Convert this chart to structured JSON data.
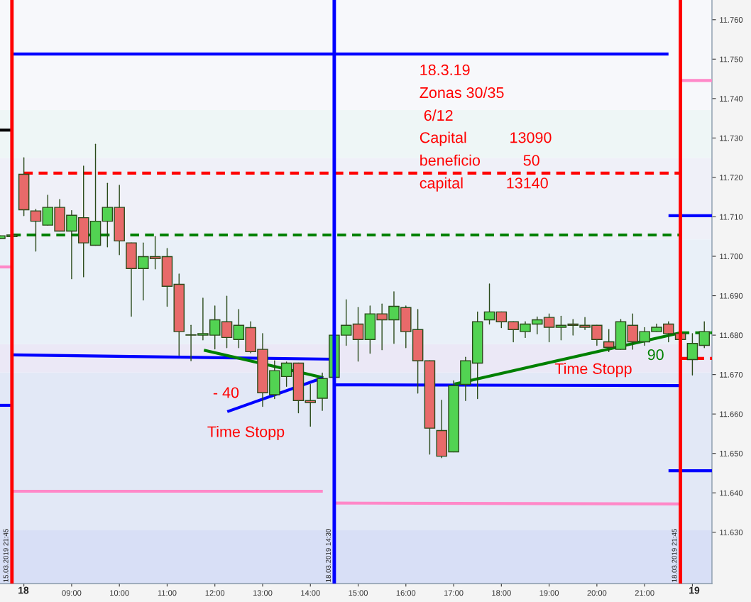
{
  "chart_data": {
    "type": "candlestick",
    "x": [
      7.5,
      7.75,
      8,
      8.25,
      8.5,
      8.75,
      9,
      9.25,
      9.5,
      9.75,
      10,
      10.25,
      10.5,
      10.75,
      11,
      11.25,
      11.5,
      11.75,
      12,
      12.25,
      12.5,
      12.75,
      13,
      13.25,
      13.5,
      13.75,
      14,
      14.25,
      14.5,
      14.75,
      15,
      15.25,
      15.5,
      15.75,
      16,
      16.25,
      16.5,
      16.75,
      17,
      17.25,
      17.5,
      17.75,
      18,
      18.25,
      18.5,
      18.75,
      19,
      19.25,
      19.5,
      19.75,
      20,
      20.25,
      20.5,
      20.75,
      21,
      21.25,
      21.5,
      21.75,
      22,
      22.25
    ],
    "ohlc": [
      [
        11.7045,
        11.7052,
        11.7045,
        11.7052
      ],
      [
        11.705,
        11.7054,
        11.705,
        11.7054
      ],
      [
        11.7208,
        11.725,
        11.7103,
        11.7118
      ],
      [
        11.7115,
        11.7119,
        11.7013,
        11.7089
      ],
      [
        11.7079,
        11.7155,
        11.7079,
        11.7124
      ],
      [
        11.7124,
        11.7144,
        11.7064,
        11.7064
      ],
      [
        11.7064,
        11.7116,
        11.6943,
        11.7104
      ],
      [
        11.7098,
        11.7229,
        11.6948,
        11.7034
      ],
      [
        11.7028,
        11.7284,
        11.7028,
        11.7089
      ],
      [
        11.7089,
        11.7185,
        11.7024,
        11.7124
      ],
      [
        11.7124,
        11.718,
        11.7004,
        11.7039
      ],
      [
        11.7034,
        11.7034,
        11.6848,
        11.6969
      ],
      [
        11.6969,
        11.7034,
        11.6889,
        11.6999
      ],
      [
        11.6999,
        11.705,
        11.6968,
        11.6994
      ],
      [
        11.6999,
        11.702,
        11.6873,
        11.6924
      ],
      [
        11.6929,
        11.6955,
        11.6749,
        11.6809
      ],
      [
        11.68,
        11.6825,
        11.6735,
        11.68
      ],
      [
        11.68,
        11.6894,
        11.6788,
        11.6804
      ],
      [
        11.68,
        11.6874,
        11.6765,
        11.6839
      ],
      [
        11.6834,
        11.6899,
        11.6768,
        11.6794
      ],
      [
        11.6789,
        11.6865,
        11.6768,
        11.6825
      ],
      [
        11.6819,
        11.6834,
        11.6755,
        11.6758
      ],
      [
        11.6764,
        11.6804,
        11.6619,
        11.6654
      ],
      [
        11.6649,
        11.6735,
        11.6639,
        11.671
      ],
      [
        11.6695,
        11.6732,
        11.667,
        11.6729
      ],
      [
        11.6729,
        11.6729,
        11.6603,
        11.6634
      ],
      [
        11.6634,
        11.6675,
        11.6569,
        11.6629
      ],
      [
        11.664,
        11.6704,
        11.6609,
        11.669
      ],
      [
        11.6693,
        11.68,
        11.6693,
        11.68
      ],
      [
        11.68,
        11.689,
        11.6774,
        11.6825
      ],
      [
        11.6828,
        11.687,
        11.6734,
        11.6789
      ],
      [
        11.6789,
        11.6874,
        11.6754,
        11.6854
      ],
      [
        11.6854,
        11.6879,
        11.6763,
        11.6839
      ],
      [
        11.6839,
        11.691,
        11.6779,
        11.6873
      ],
      [
        11.687,
        11.6874,
        11.6768,
        11.6809
      ],
      [
        11.6814,
        11.6865,
        11.6653,
        11.6735
      ],
      [
        11.6735,
        11.6735,
        11.6498,
        11.6564
      ],
      [
        11.6558,
        11.6635,
        11.6489,
        11.6493
      ],
      [
        11.6504,
        11.6684,
        11.6504,
        11.6672
      ],
      [
        11.6675,
        11.6744,
        11.6634,
        11.6735
      ],
      [
        11.6729,
        11.6859,
        11.6639,
        11.6834
      ],
      [
        11.6839,
        11.693,
        11.6828,
        11.6859
      ],
      [
        11.6859,
        11.6859,
        11.6819,
        11.6834
      ],
      [
        11.6834,
        11.6834,
        11.6783,
        11.6814
      ],
      [
        11.6809,
        11.6834,
        11.6794,
        11.6828
      ],
      [
        11.6828,
        11.6846,
        11.6803,
        11.6839
      ],
      [
        11.6845,
        11.6854,
        11.6783,
        11.682
      ],
      [
        11.682,
        11.6848,
        11.6788,
        11.6825
      ],
      [
        11.6828,
        11.684,
        11.68,
        11.6825
      ],
      [
        11.6825,
        11.6845,
        11.6814,
        11.682
      ],
      [
        11.6825,
        11.6825,
        11.6774,
        11.6789
      ],
      [
        11.6783,
        11.6814,
        11.6758,
        11.6769
      ],
      [
        11.6764,
        11.684,
        11.6764,
        11.6834
      ],
      [
        11.6825,
        11.6854,
        11.6764,
        11.6783
      ],
      [
        11.6783,
        11.6819,
        11.6774,
        11.6809
      ],
      [
        11.6809,
        11.6828,
        11.6809,
        11.682
      ],
      [
        11.6828,
        11.6834,
        11.6783,
        11.6804
      ],
      [
        11.6804,
        11.6804,
        11.6789,
        11.6789
      ],
      [
        11.6738,
        11.6804,
        11.6699,
        11.6779
      ],
      [
        11.6774,
        11.6834,
        11.6768,
        11.6809
      ]
    ],
    "colors": [
      "#52d352",
      "#52d352",
      "#e86a6a",
      "#e86a6a",
      "#52d352",
      "#e86a6a",
      "#52d352",
      "#e86a6a",
      "#52d352",
      "#52d352",
      "#e86a6a",
      "#e86a6a",
      "#52d352",
      "#e86a6a",
      "#e86a6a",
      "#e86a6a",
      "#e86a6a",
      "#52d352",
      "#52d352",
      "#e86a6a",
      "#52d352",
      "#e86a6a",
      "#e86a6a",
      "#52d352",
      "#52d352",
      "#e86a6a",
      "#e86a6a",
      "#52d352",
      "#52d352",
      "#52d352",
      "#e86a6a",
      "#52d352",
      "#e86a6a",
      "#52d352",
      "#e86a6a",
      "#e86a6a",
      "#e86a6a",
      "#e86a6a",
      "#52d352",
      "#52d352",
      "#52d352",
      "#52d352",
      "#e86a6a",
      "#e86a6a",
      "#52d352",
      "#52d352",
      "#e86a6a",
      "#52d352",
      "#e86a6a",
      "#e86a6a",
      "#e86a6a",
      "#e86a6a",
      "#52d352",
      "#e86a6a",
      "#52d352",
      "#52d352",
      "#e86a6a",
      "#e86a6a",
      "#52d352",
      "#52d352"
    ],
    "series": [
      {
        "type": "line",
        "color": "#0000ff",
        "x": [
          7.75,
          21.5
        ],
        "values": [
          11.7513,
          11.7513
        ]
      },
      {
        "type": "line",
        "color": "#0000ff",
        "x": [
          7.75,
          14.5
        ],
        "values": [
          11.675,
          11.6739
        ]
      },
      {
        "type": "line",
        "color": "#ff88c8",
        "x": [
          7.75,
          14.26
        ],
        "values": [
          11.6404,
          11.6404
        ]
      },
      {
        "type": "line",
        "color": "#0000ff",
        "x": [
          14.5,
          21.75
        ],
        "values": [
          11.6674,
          11.6672
        ]
      },
      {
        "type": "line",
        "color": "#ff88c8",
        "x": [
          14.5,
          21.75
        ],
        "values": [
          11.6374,
          11.6372
        ]
      },
      {
        "type": "line",
        "color": "#ff0000",
        "line_style": "dashed",
        "x": [
          8.0,
          21.75
        ],
        "values": [
          11.7211,
          11.7211
        ]
      },
      {
        "type": "line",
        "color": "#008000",
        "line_style": "dashed",
        "x": [
          7.75,
          21.75
        ],
        "values": [
          11.7054,
          11.7054
        ]
      },
      {
        "type": "line",
        "color": "#008000",
        "x": [
          11.77,
          14.27
        ],
        "values": [
          11.6762,
          11.6692
        ]
      },
      {
        "type": "line",
        "color": "#0000ff",
        "x": [
          12.26,
          14.27
        ],
        "values": [
          11.6606,
          11.6692
        ]
      },
      {
        "type": "line",
        "color": "#008000",
        "x": [
          17.02,
          21.75
        ],
        "values": [
          11.6676,
          11.6806
        ]
      },
      {
        "type": "line",
        "color": "#ff88c8",
        "x": [
          21.75,
          22.41
        ],
        "values": [
          11.7446,
          11.7446
        ]
      },
      {
        "type": "line",
        "color": "#0000ff",
        "x": [
          21.5,
          22.41
        ],
        "values": [
          11.7103,
          11.7103
        ]
      },
      {
        "type": "line",
        "color": "#0000ff",
        "x": [
          21.5,
          22.41
        ],
        "values": [
          11.6456,
          11.6456
        ]
      },
      {
        "type": "line",
        "color": "#ff0000",
        "line_style": "dashed",
        "x": [
          21.75,
          22.41
        ],
        "values": [
          11.6741,
          11.6741
        ]
      },
      {
        "type": "line",
        "color": "#008000",
        "line_style": "dashed",
        "x": [
          21.75,
          22.41
        ],
        "values": [
          11.6806,
          11.6806
        ]
      },
      {
        "type": "line",
        "color": "#000000",
        "x": [
          7.5,
          7.75
        ],
        "values": [
          11.732,
          11.732
        ]
      },
      {
        "type": "line",
        "color": "#ff88c8",
        "x": [
          7.5,
          7.75
        ],
        "values": [
          11.6973,
          11.6973
        ]
      },
      {
        "type": "line",
        "color": "#0000ff",
        "x": [
          7.5,
          7.75
        ],
        "values": [
          11.6622,
          11.6622
        ]
      }
    ],
    "ref_lines": [
      {
        "axis": "x",
        "value": 7.75,
        "color": "#ff0000"
      },
      {
        "axis": "x",
        "value": 14.5,
        "color": "#0000ff"
      },
      {
        "axis": "x",
        "value": 21.75,
        "color": "#ff0000"
      }
    ],
    "bands": [
      {
        "axis": "y",
        "from": 11.7371,
        "to": 11.765,
        "color": "#f7f8fb"
      },
      {
        "axis": "y",
        "from": 11.725,
        "to": 11.7371,
        "color": "#eef6f6"
      },
      {
        "axis": "y",
        "from": 11.7043,
        "to": 11.725,
        "color": "#eff0f8"
      },
      {
        "axis": "y",
        "from": 11.6777,
        "to": 11.7043,
        "color": "#e9f0f8"
      },
      {
        "axis": "y",
        "from": 11.6705,
        "to": 11.6777,
        "color": "#ebe8f6"
      },
      {
        "axis": "y",
        "from": 11.6305,
        "to": 11.6705,
        "color": "#e2e8f6"
      },
      {
        "axis": "y",
        "from": 11.617,
        "to": 11.6305,
        "color": "#d8dff6"
      }
    ],
    "annotations": [
      "18.3.19",
      "Zonas 30/35",
      " 6/12",
      "Capital          13090",
      "beneficio          50",
      "capital          13140",
      "- 40",
      "Time Stopp",
      "Time Stopp",
      "90",
      "15.03.2019 21:45",
      "18.03.2019 14:30",
      "18.03.2019 21:45",
      "18",
      "19"
    ],
    "xlim": [
      7.5,
      22.41
    ],
    "ylim": [
      11.617,
      11.765
    ],
    "xticks": [
      {
        "value": 8,
        "label": null
      },
      {
        "value": 9,
        "label": "09:00"
      },
      {
        "value": 10,
        "label": "10:00"
      },
      {
        "value": 11,
        "label": "11:00"
      },
      {
        "value": 12,
        "label": "12:00"
      },
      {
        "value": 13,
        "label": "13:00"
      },
      {
        "value": 14,
        "label": "14:00"
      },
      {
        "value": 15,
        "label": "15:00"
      },
      {
        "value": 16,
        "label": "16:00"
      },
      {
        "value": 17,
        "label": "17:00"
      },
      {
        "value": 18,
        "label": "18:00"
      },
      {
        "value": 19,
        "label": "19:00"
      },
      {
        "value": 20,
        "label": "20:00"
      },
      {
        "value": 21,
        "label": "21:00"
      },
      {
        "value": 22,
        "label": null
      }
    ],
    "yticks": [
      {
        "value": 11.63,
        "label": "11.630"
      },
      {
        "value": 11.64,
        "label": "11.640"
      },
      {
        "value": 11.65,
        "label": "11.650"
      },
      {
        "value": 11.66,
        "label": "11.660"
      },
      {
        "value": 11.67,
        "label": "11.670"
      },
      {
        "value": 11.68,
        "label": "11.680"
      },
      {
        "value": 11.69,
        "label": "11.690"
      },
      {
        "value": 11.7,
        "label": "11.700"
      },
      {
        "value": 11.71,
        "label": "11.710"
      },
      {
        "value": 11.72,
        "label": "11.720"
      },
      {
        "value": 11.73,
        "label": "11.730"
      },
      {
        "value": 11.74,
        "label": "11.740"
      },
      {
        "value": 11.75,
        "label": "11.750"
      },
      {
        "value": 11.76,
        "label": "11.760"
      }
    ],
    "grid": false
  }
}
